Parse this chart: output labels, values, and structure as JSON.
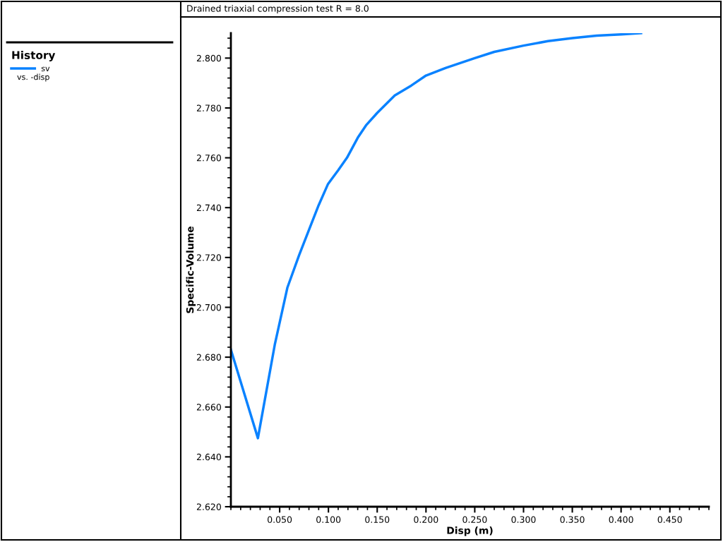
{
  "chart_data": {
    "type": "line",
    "title": "Drained triaxial compression test R = 8.0",
    "xlabel": "Disp (m)",
    "ylabel": "Specific-Volume",
    "legend_title": "History",
    "annotations": [
      "vs. -disp"
    ],
    "series": [
      {
        "name": "sv",
        "color": "#0a82ff",
        "x": [
          0.0,
          0.0277,
          0.045,
          0.058,
          0.07,
          0.081,
          0.09,
          0.0996,
          0.11,
          0.119,
          0.13,
          0.1385,
          0.15,
          0.168,
          0.185,
          0.2,
          0.22,
          0.25,
          0.27,
          0.3,
          0.325,
          0.35,
          0.375,
          0.4,
          0.4205
        ],
        "values": [
          2.683,
          2.6475,
          2.685,
          2.708,
          2.721,
          2.732,
          2.741,
          2.7495,
          2.755,
          2.76,
          2.768,
          2.773,
          2.778,
          2.785,
          2.789,
          2.793,
          2.796,
          2.8,
          2.8025,
          2.805,
          2.8068,
          2.808,
          2.809,
          2.8095,
          2.81
        ]
      }
    ],
    "xlim": [
      0,
      0.49
    ],
    "ylim": [
      2.62,
      2.81
    ],
    "xticks": [
      {
        "value": 0.05,
        "label": "0.050"
      },
      {
        "value": 0.1,
        "label": "0.100"
      },
      {
        "value": 0.15,
        "label": "0.150"
      },
      {
        "value": 0.2,
        "label": "0.200"
      },
      {
        "value": 0.25,
        "label": "0.250"
      },
      {
        "value": 0.3,
        "label": "0.300"
      },
      {
        "value": 0.35,
        "label": "0.350"
      },
      {
        "value": 0.4,
        "label": "0.400"
      },
      {
        "value": 0.45,
        "label": "0.450"
      }
    ],
    "yticks": [
      {
        "value": 2.62,
        "label": "2.620"
      },
      {
        "value": 2.64,
        "label": "2.640"
      },
      {
        "value": 2.66,
        "label": "2.660"
      },
      {
        "value": 2.68,
        "label": "2.680"
      },
      {
        "value": 2.7,
        "label": "2.700"
      },
      {
        "value": 2.72,
        "label": "2.720"
      },
      {
        "value": 2.74,
        "label": "2.740"
      },
      {
        "value": 2.76,
        "label": "2.760"
      },
      {
        "value": 2.78,
        "label": "2.780"
      },
      {
        "value": 2.8,
        "label": "2.800"
      }
    ],
    "grid": false,
    "legend": "top left",
    "line_style": "solid",
    "marker": "none"
  }
}
